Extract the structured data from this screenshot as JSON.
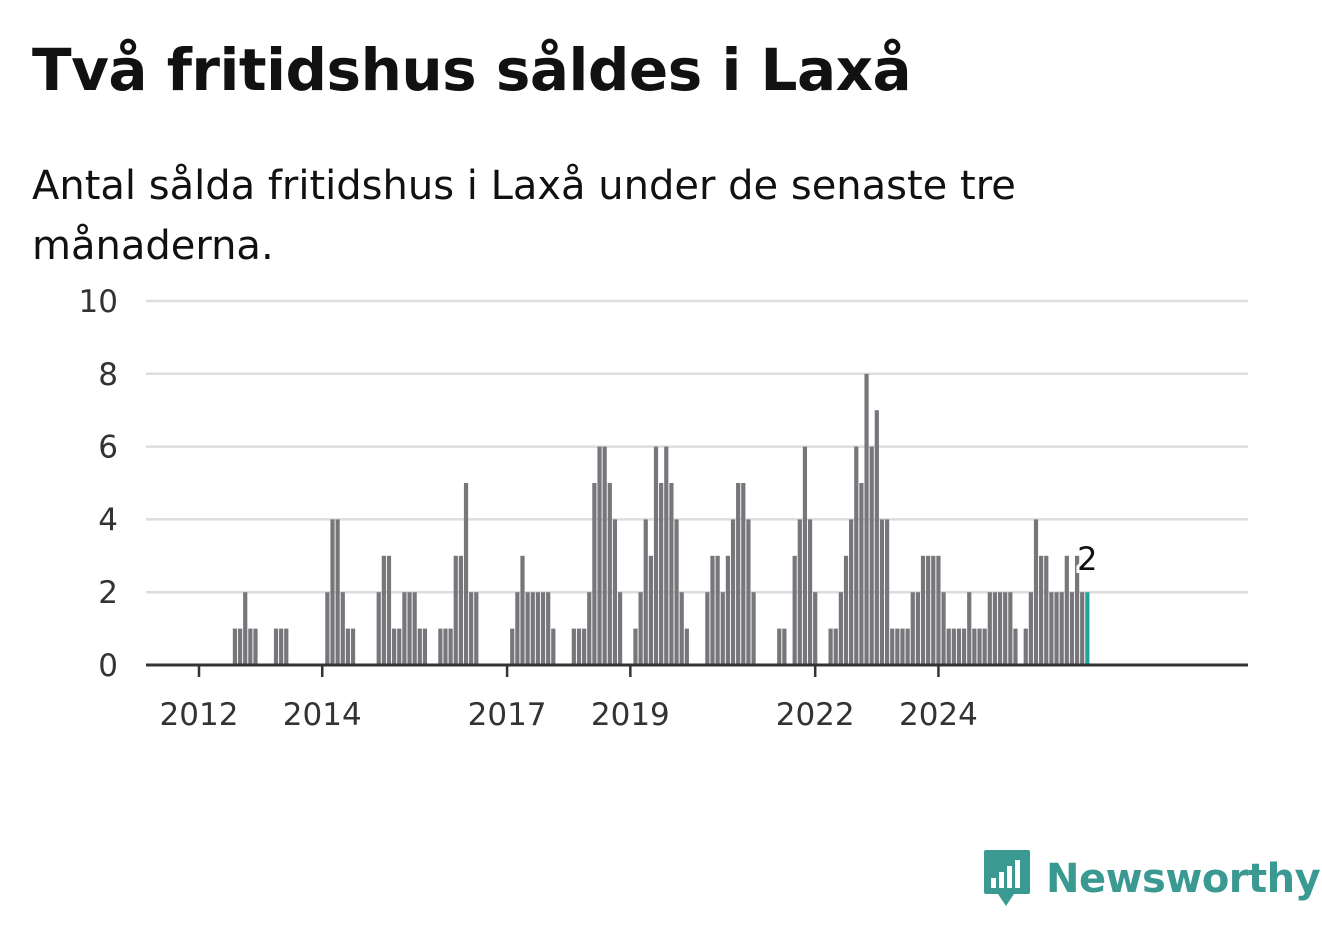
{
  "title": "Två fritidshus såldes i Laxå",
  "subtitle": "Antal sålda fritidshus i Laxå under de senaste tre månaderna.",
  "brand": {
    "name": "Newsworthy",
    "color": "#3a9a91",
    "icon": "newsworthy-logo-icon"
  },
  "colors": {
    "bar": "#77767b",
    "highlight": "#22a39b",
    "grid": "#dddddd",
    "axis": "#333333"
  },
  "chart_data": {
    "type": "bar",
    "title": "",
    "xlabel": "",
    "ylabel": "",
    "ylim": [
      0,
      10
    ],
    "yticks": [
      0,
      2,
      4,
      6,
      8,
      10
    ],
    "grid": true,
    "x_start": "2012-01",
    "xticks": [
      {
        "label": "2012",
        "month": "2012-01"
      },
      {
        "label": "2014",
        "month": "2014-01"
      },
      {
        "label": "2017",
        "month": "2017-01"
      },
      {
        "label": "2019",
        "month": "2019-01"
      },
      {
        "label": "2022",
        "month": "2022-01"
      },
      {
        "label": "2024",
        "month": "2024-01"
      }
    ],
    "values": [
      0,
      0,
      0,
      0,
      0,
      0,
      0,
      1,
      1,
      2,
      1,
      1,
      0,
      0,
      0,
      1,
      1,
      1,
      0,
      0,
      0,
      0,
      0,
      0,
      0,
      2,
      4,
      4,
      2,
      1,
      1,
      0,
      0,
      0,
      0,
      2,
      3,
      3,
      1,
      1,
      2,
      2,
      2,
      1,
      1,
      0,
      0,
      1,
      1,
      1,
      3,
      3,
      5,
      2,
      2,
      0,
      0,
      0,
      0,
      0,
      0,
      1,
      2,
      3,
      2,
      2,
      2,
      2,
      2,
      1,
      0,
      0,
      0,
      1,
      1,
      1,
      2,
      5,
      6,
      6,
      5,
      4,
      2,
      0,
      0,
      1,
      2,
      4,
      3,
      6,
      5,
      6,
      5,
      4,
      2,
      1,
      0,
      0,
      0,
      2,
      3,
      3,
      2,
      3,
      4,
      5,
      5,
      4,
      2,
      0,
      0,
      0,
      0,
      1,
      1,
      0,
      3,
      4,
      6,
      4,
      2,
      0,
      0,
      1,
      1,
      2,
      3,
      4,
      6,
      5,
      8,
      6,
      7,
      4,
      4,
      1,
      1,
      1,
      1,
      2,
      2,
      3,
      3,
      3,
      3,
      2,
      1,
      1,
      1,
      1,
      2,
      1,
      1,
      1,
      2,
      2,
      2,
      2,
      2,
      1,
      0,
      1,
      2,
      4,
      3,
      3,
      2,
      2,
      2,
      3,
      2,
      3,
      2,
      2
    ],
    "highlight_index": 173,
    "data_label": "2"
  }
}
